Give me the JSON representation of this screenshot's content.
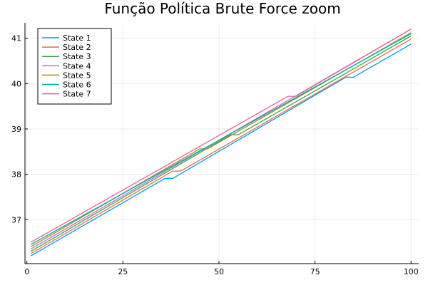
{
  "chart_data": {
    "type": "line",
    "title": "Função Política Brute Force zoom",
    "xlabel": "",
    "ylabel": "",
    "xlim": [
      -0.5,
      102.0
    ],
    "ylim": [
      36.03,
      41.34
    ],
    "xticks": [
      0,
      25,
      50,
      75,
      100
    ],
    "yticks": [
      37,
      38,
      39,
      40,
      41
    ],
    "grid": true,
    "legend_position": "top-left",
    "series": [
      {
        "name": "State 1",
        "color": "#009AFA",
        "x": [
          1,
          36,
          38,
          83,
          85,
          100
        ],
        "y": [
          36.2,
          37.91,
          37.91,
          40.14,
          40.14,
          40.87
        ]
      },
      {
        "name": "State 2",
        "color": "#E36F47",
        "x": [
          1,
          38,
          40,
          100
        ],
        "y": [
          36.25,
          38.07,
          38.07,
          40.98
        ]
      },
      {
        "name": "State 3",
        "color": "#3EA44E",
        "x": [
          1,
          53,
          55,
          100
        ],
        "y": [
          36.3,
          38.87,
          38.87,
          41.05
        ]
      },
      {
        "name": "State 4",
        "color": "#C371D2",
        "x": [
          1,
          100
        ],
        "y": [
          36.35,
          41.2
        ]
      },
      {
        "name": "State 5",
        "color": "#AC8E18",
        "x": [
          1,
          45,
          47,
          100
        ],
        "y": [
          36.4,
          38.56,
          38.56,
          41.12
        ]
      },
      {
        "name": "State 6",
        "color": "#00A9AD",
        "x": [
          1,
          100
        ],
        "y": [
          36.45,
          41.1
        ]
      },
      {
        "name": "State 7",
        "color": "#ED5E93",
        "x": [
          1,
          68,
          70,
          100
        ],
        "y": [
          36.5,
          39.72,
          39.72,
          41.2
        ]
      }
    ]
  }
}
